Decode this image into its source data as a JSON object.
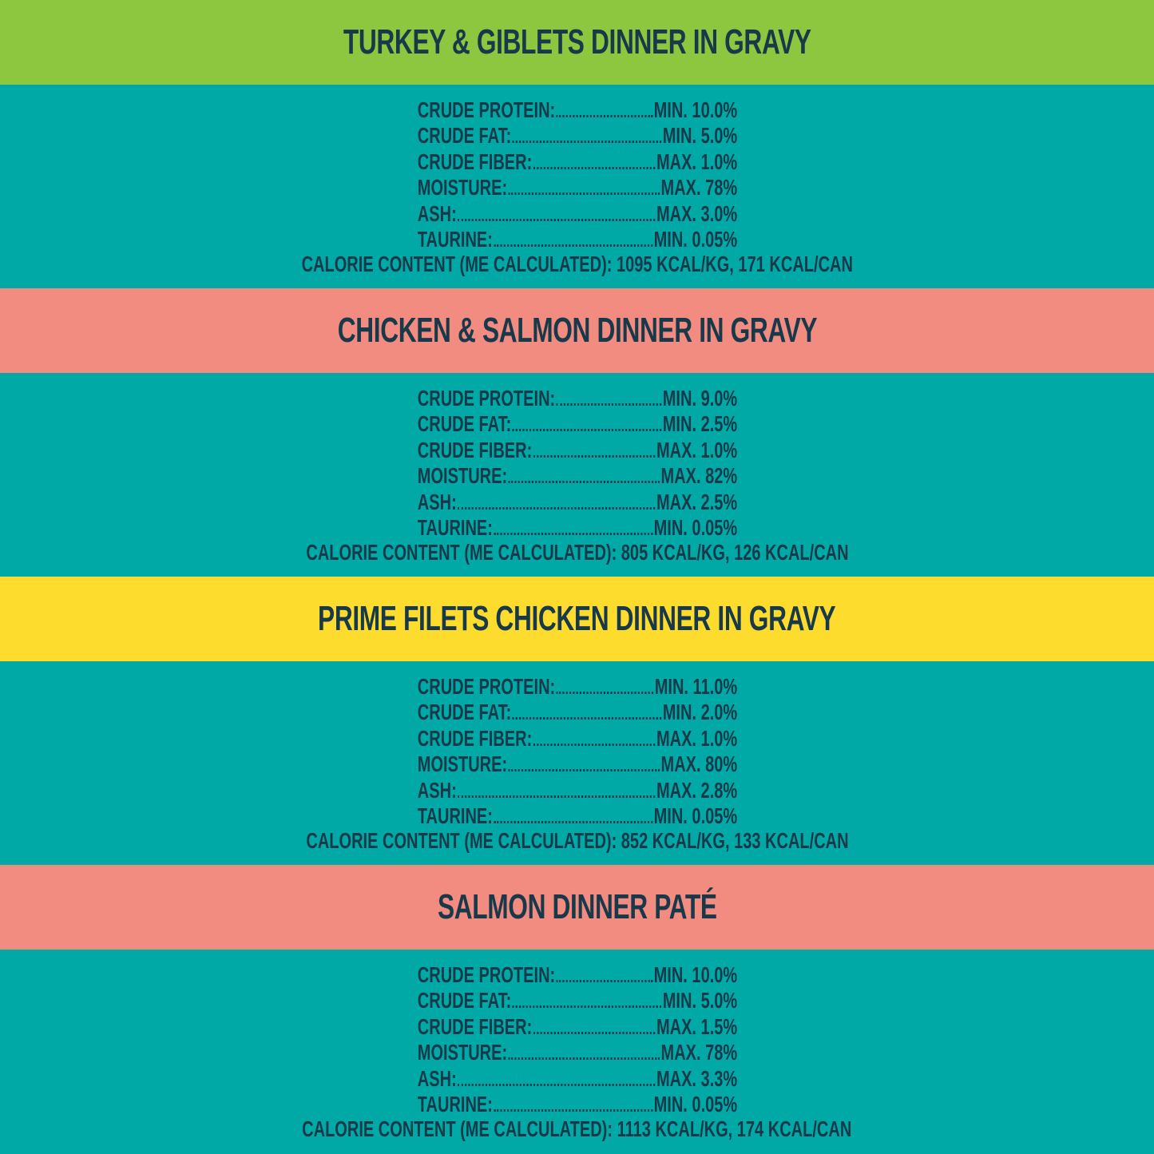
{
  "colors": {
    "teal": "#00a9a5",
    "green": "#8dc63f",
    "salmon": "#f28b80",
    "yellow": "#fddc2e",
    "text": "#17394a"
  },
  "sections": [
    {
      "title": "TURKEY & GIBLETS DINNER IN GRAVY",
      "color": "#8dc63f",
      "rows": [
        {
          "label": "CRUDE PROTEIN:",
          "value": "MIN. 10.0%"
        },
        {
          "label": "CRUDE FAT:",
          "value": "MIN. 5.0%"
        },
        {
          "label": "CRUDE FIBER:",
          "value": "MAX. 1.0%"
        },
        {
          "label": "MOISTURE:",
          "value": "MAX. 78%"
        },
        {
          "label": "ASH:",
          "value": "MAX. 3.0%"
        },
        {
          "label": "TAURINE:",
          "value": "MIN. 0.05%"
        }
      ],
      "calorie": "CALORIE CONTENT (ME CALCULATED): 1095 KCAL/KG, 171 KCAL/CAN"
    },
    {
      "title": "CHICKEN & SALMON DINNER IN GRAVY",
      "color": "#f28b80",
      "rows": [
        {
          "label": "CRUDE PROTEIN:",
          "value": "MIN. 9.0%"
        },
        {
          "label": "CRUDE FAT:",
          "value": "MIN. 2.5%"
        },
        {
          "label": "CRUDE FIBER:",
          "value": "MAX. 1.0%"
        },
        {
          "label": "MOISTURE:",
          "value": "MAX. 82%"
        },
        {
          "label": "ASH:",
          "value": "MAX. 2.5%"
        },
        {
          "label": "TAURINE:",
          "value": "MIN. 0.05%"
        }
      ],
      "calorie": "CALORIE CONTENT (ME CALCULATED): 805 KCAL/KG, 126 KCAL/CAN"
    },
    {
      "title": "PRIME FILETS CHICKEN DINNER IN GRAVY",
      "color": "#fddc2e",
      "rows": [
        {
          "label": "CRUDE PROTEIN:",
          "value": "MIN. 11.0%"
        },
        {
          "label": "CRUDE FAT:",
          "value": "MIN. 2.0%"
        },
        {
          "label": "CRUDE FIBER:",
          "value": "MAX. 1.0%"
        },
        {
          "label": "MOISTURE:",
          "value": "MAX. 80%"
        },
        {
          "label": "ASH:",
          "value": "MAX. 2.8%"
        },
        {
          "label": "TAURINE:",
          "value": "MIN. 0.05%"
        }
      ],
      "calorie": "CALORIE CONTENT (ME CALCULATED): 852 KCAL/KG, 133 KCAL/CAN"
    },
    {
      "title": "SALMON DINNER PATÉ",
      "color": "#f28b80",
      "rows": [
        {
          "label": "CRUDE PROTEIN:",
          "value": "MIN. 10.0%"
        },
        {
          "label": "CRUDE FAT:",
          "value": "MIN. 5.0%"
        },
        {
          "label": "CRUDE FIBER:",
          "value": "MAX. 1.5%"
        },
        {
          "label": "MOISTURE:",
          "value": "MAX. 78%"
        },
        {
          "label": "ASH:",
          "value": "MAX. 3.3%"
        },
        {
          "label": "TAURINE:",
          "value": "MIN. 0.05%"
        }
      ],
      "calorie": "CALORIE CONTENT (ME CALCULATED): 1113 KCAL/KG, 174 KCAL/CAN"
    }
  ]
}
